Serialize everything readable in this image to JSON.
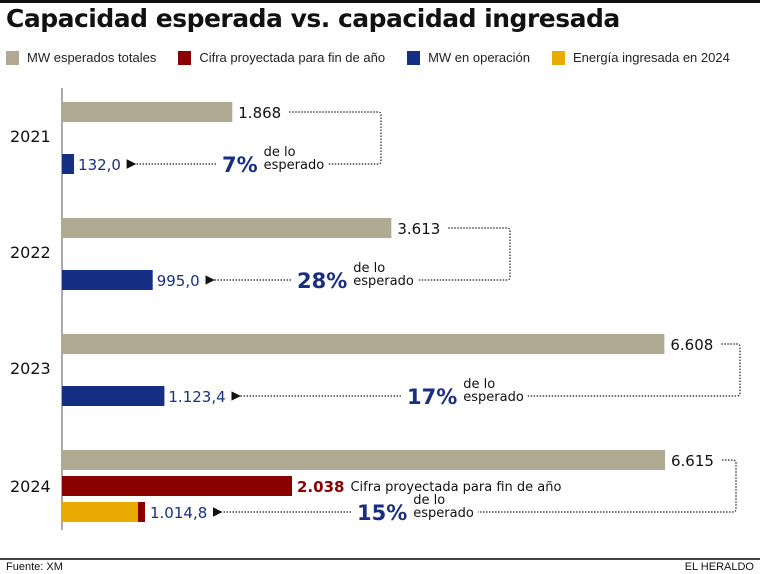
{
  "title": "Capacidad esperada vs. capacidad ingresada",
  "legend": [
    {
      "label": "MW esperados totales",
      "color": "#b0aa92"
    },
    {
      "label": "Cifra proyectada para fin de año",
      "color": "#8b0000"
    },
    {
      "label": "MW en operación",
      "color": "#152f85"
    },
    {
      "label": "Energía ingresada en 2024",
      "color": "#eaab00"
    }
  ],
  "footer": {
    "source": "Fuente: XM",
    "brand": "EL HERALDO"
  },
  "chart_data": {
    "type": "bar",
    "orientation": "horizontal",
    "title": "Capacidad esperada vs. capacidad ingresada",
    "categories": [
      "2021",
      "2022",
      "2023",
      "2024"
    ],
    "units": "MW",
    "series": [
      {
        "name": "MW esperados totales",
        "color": "#b0aa92",
        "values": [
          1868,
          3613,
          6608,
          6615
        ],
        "labels": [
          "1.868",
          "3.613",
          "6.608",
          "6.615"
        ]
      },
      {
        "name": "MW en operación",
        "color": "#152f85",
        "values": [
          132.0,
          995.0,
          1123.4,
          null
        ],
        "labels": [
          "132,0",
          "995,0",
          "1.123,4",
          null
        ]
      },
      {
        "name": "Cifra proyectada para fin de año",
        "color": "#8b0000",
        "values": [
          null,
          null,
          null,
          2038
        ],
        "labels": [
          null,
          null,
          null,
          "2.038"
        ],
        "annotation": "Cifra proyectada para fin de año"
      },
      {
        "name": "Energía ingresada en 2024",
        "color": "#eaab00",
        "values": [
          null,
          null,
          null,
          1014.8
        ],
        "labels": [
          null,
          null,
          null,
          "1.014,8"
        ]
      }
    ],
    "percent_annotations": [
      {
        "year": "2021",
        "pct": "7%",
        "text1": "de lo",
        "text2": "esperado"
      },
      {
        "year": "2022",
        "pct": "28%",
        "text1": "de lo",
        "text2": "esperado"
      },
      {
        "year": "2023",
        "pct": "17%",
        "text1": "de lo",
        "text2": "esperado"
      },
      {
        "year": "2024",
        "pct": "15%",
        "text1": "de lo",
        "text2": "esperado"
      }
    ],
    "xlim": [
      0,
      6615
    ],
    "grid": false,
    "legend_position": "top"
  }
}
